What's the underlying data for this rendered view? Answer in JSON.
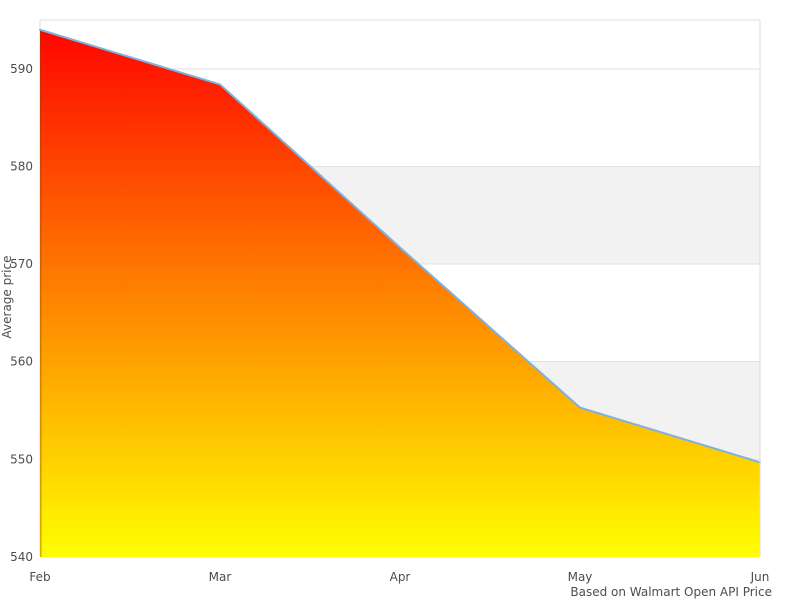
{
  "chart_data": {
    "type": "area",
    "title": "",
    "categories": [
      "Feb",
      "Mar",
      "Apr",
      "May",
      "Jun"
    ],
    "values": [
      594.0,
      588.4,
      571.7,
      555.3,
      549.7
    ],
    "xlabel": "",
    "ylabel": "Average price",
    "caption": "Based on Walmart Open API Price",
    "ylim": [
      540,
      595
    ],
    "yticks": [
      540,
      550,
      560,
      570,
      580,
      590
    ],
    "grid": "horizontal-only",
    "legend": "none",
    "alternate_gray_bands": [
      [
        550,
        560
      ],
      [
        570,
        580
      ]
    ],
    "colors": {
      "area_gradient_top": "#ff0000",
      "area_gradient_bottom": "#ffff00",
      "line": "#7fb1de",
      "left_edge_top": "#c62500",
      "left_edge_bottom": "#d4ae00",
      "band": "#f2f2f2",
      "gridline": "#e2e2e2",
      "border": "#dcdcdc",
      "label_text": "#4d4d4d",
      "background": "#ffffff"
    }
  }
}
